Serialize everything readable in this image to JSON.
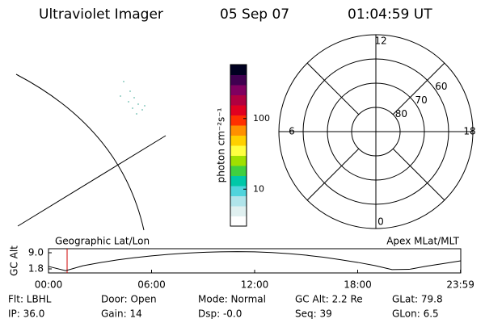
{
  "header": {
    "title": "Ultraviolet Imager",
    "date": "05 Sep 07",
    "time": "01:04:59 UT"
  },
  "colorbar": {
    "label": "photon cm⁻²s⁻¹",
    "log": true,
    "lim": [
      3,
      580
    ],
    "ticks": [
      10,
      100
    ],
    "colors": [
      "#ffffff",
      "#e0f0f0",
      "#b0e4ea",
      "#50d4dc",
      "#00c8a8",
      "#40d040",
      "#a0e000",
      "#ffff40",
      "#ffd000",
      "#ff9000",
      "#ff3000",
      "#e00020",
      "#b00040",
      "#800060",
      "#400050",
      "#000020"
    ]
  },
  "polar": {
    "lat_lim": [
      50,
      90
    ],
    "rings": [
      80,
      70,
      60
    ],
    "mlt_ticks": [
      12,
      6,
      0,
      18
    ]
  },
  "chart_data": {
    "type": "line",
    "ylabel": "GC Alt",
    "left_label": "Geographic Lat/Lon",
    "right_label": "Apex MLat/MLT",
    "x": [
      0,
      1,
      2,
      3,
      4,
      5,
      6,
      7,
      8,
      9,
      10,
      11,
      12,
      13,
      14,
      15,
      16,
      17,
      18,
      19,
      20,
      21,
      22,
      23,
      24
    ],
    "values": [
      2.9,
      1.0,
      3.2,
      4.6,
      5.8,
      6.8,
      7.6,
      8.3,
      8.8,
      9.2,
      9.4,
      9.5,
      9.4,
      9.1,
      8.6,
      7.9,
      7.0,
      5.9,
      4.7,
      3.3,
      1.5,
      1.6,
      3.0,
      4.2,
      5.4
    ],
    "color": "#000000",
    "xlim": [
      0,
      24
    ],
    "ylim": [
      0,
      10.8
    ],
    "xticks": [
      {
        "value": 0,
        "label": "00:00"
      },
      {
        "value": 6,
        "label": "06:00"
      },
      {
        "value": 12,
        "label": "12:00"
      },
      {
        "value": 18,
        "label": "18:00"
      },
      {
        "value": 23.983,
        "label": "23:59"
      }
    ],
    "yticks": [
      1.8,
      {
        "value": 9,
        "label": "9.0"
      }
    ],
    "marker_x": 1.083,
    "marker_color": "#d00000"
  },
  "footer": {
    "rows": [
      [
        "Flt: LBHL",
        "Door: Open",
        "Mode: Normal",
        "GC Alt: 2.2 Re",
        "GLat:  79.8"
      ],
      [
        "IP: 36.0",
        "Gain: 14",
        "Dsp:  -0.0",
        "Seq: 39",
        "GLon:  6.5"
      ]
    ]
  }
}
